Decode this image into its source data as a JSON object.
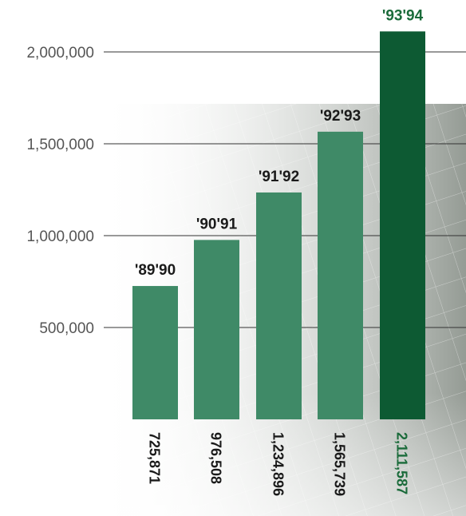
{
  "chart_data": {
    "type": "bar",
    "title": "",
    "xlabel": "",
    "ylabel": "",
    "ylim": [
      0,
      2000000
    ],
    "yticks": [
      {
        "value": 500000,
        "label": "500,000"
      },
      {
        "value": 1000000,
        "label": "1,000,000"
      },
      {
        "value": 1500000,
        "label": "1,500,000"
      },
      {
        "value": 2000000,
        "label": "2,000,000"
      }
    ],
    "categories": [
      "'89'90",
      "'90'91",
      "'91'92",
      "'92'93",
      "'93'94"
    ],
    "values": [
      725871,
      976508,
      1234896,
      1565739,
      2111587
    ],
    "value_labels": [
      "725,871",
      "976,508",
      "1,234,896",
      "1,565,739",
      "2,111,587"
    ],
    "grid": true,
    "legend": "none",
    "colors": {
      "bar": "#3f8a67",
      "highlight_bar": "#0d5a33",
      "category_label": "#1a1a1a",
      "highlight_label": "#1a6b3a",
      "axis_text": "#555555",
      "gridline": "#333333"
    },
    "highlight_index": 4
  }
}
